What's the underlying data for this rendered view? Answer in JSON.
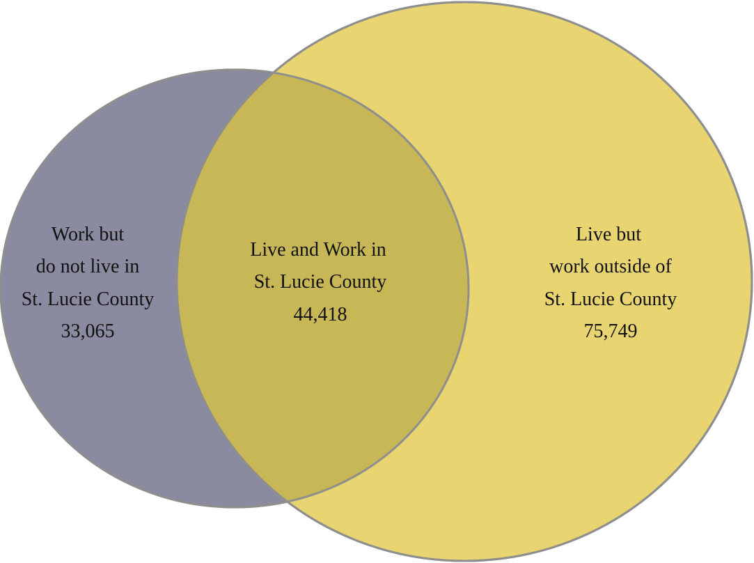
{
  "colors": {
    "work_only_fill": "#8a8aa1",
    "live_fill": "#e8d572",
    "overlap_fill": "#c8b756",
    "outline": "#8e8e8e"
  },
  "regions": {
    "work_only": {
      "lines": [
        "Work but",
        "do not live in",
        "St. Lucie County"
      ],
      "value": "33,065"
    },
    "both": {
      "lines": [
        "Live and Work in",
        "St. Lucie County"
      ],
      "value": "44,418"
    },
    "live_only": {
      "lines": [
        "Live but",
        "work outside of",
        "St. Lucie County"
      ],
      "value": "75,749"
    }
  }
}
